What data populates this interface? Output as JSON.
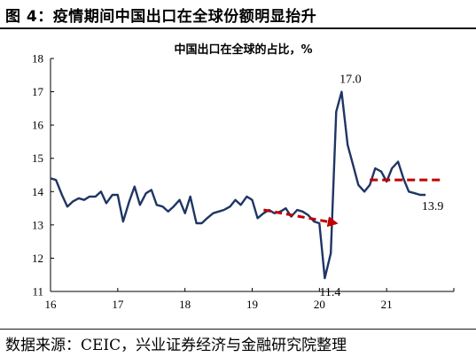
{
  "figure_title": "图 4：疫情期间中国出口在全球份额明显抬升",
  "source": "数据来源：CEIC，兴业证券经济与金融研究院整理",
  "colors": {
    "line": "#1f3564",
    "arrow": "#c00000"
  },
  "chart_data": {
    "type": "line",
    "title": "中国出口在全球的占比，%",
    "xlabel": "",
    "ylabel": "",
    "ylim": [
      11,
      18
    ],
    "yticks": [
      "11",
      "12",
      "13",
      "14",
      "15",
      "16",
      "17",
      "18"
    ],
    "xticks": [
      {
        "label": "16",
        "x": 2016.0
      },
      {
        "label": "17",
        "x": 2017.0
      },
      {
        "label": "18",
        "x": 2018.0
      },
      {
        "label": "19",
        "x": 2019.0
      },
      {
        "label": "20",
        "x": 2020.0
      },
      {
        "label": "21",
        "x": 2021.0
      }
    ],
    "xlim": [
      2016.0,
      2022.0
    ],
    "series": [
      {
        "points": [
          [
            2016.0,
            14.4
          ],
          [
            2016.08,
            14.35
          ],
          [
            2016.17,
            13.9
          ],
          [
            2016.25,
            13.55
          ],
          [
            2016.33,
            13.7
          ],
          [
            2016.42,
            13.8
          ],
          [
            2016.5,
            13.75
          ],
          [
            2016.58,
            13.85
          ],
          [
            2016.67,
            13.85
          ],
          [
            2016.75,
            14.0
          ],
          [
            2016.83,
            13.65
          ],
          [
            2016.92,
            13.9
          ],
          [
            2017.0,
            13.9
          ],
          [
            2017.08,
            13.1
          ],
          [
            2017.17,
            13.7
          ],
          [
            2017.25,
            14.15
          ],
          [
            2017.33,
            13.6
          ],
          [
            2017.42,
            13.95
          ],
          [
            2017.5,
            14.05
          ],
          [
            2017.58,
            13.6
          ],
          [
            2017.67,
            13.55
          ],
          [
            2017.75,
            13.4
          ],
          [
            2017.83,
            13.55
          ],
          [
            2017.92,
            13.75
          ],
          [
            2018.0,
            13.35
          ],
          [
            2018.08,
            13.85
          ],
          [
            2018.17,
            13.05
          ],
          [
            2018.25,
            13.05
          ],
          [
            2018.33,
            13.2
          ],
          [
            2018.42,
            13.35
          ],
          [
            2018.5,
            13.4
          ],
          [
            2018.58,
            13.45
          ],
          [
            2018.67,
            13.55
          ],
          [
            2018.75,
            13.75
          ],
          [
            2018.83,
            13.6
          ],
          [
            2018.92,
            13.85
          ],
          [
            2019.0,
            13.75
          ],
          [
            2019.08,
            13.2
          ],
          [
            2019.17,
            13.35
          ],
          [
            2019.25,
            13.45
          ],
          [
            2019.33,
            13.35
          ],
          [
            2019.42,
            13.4
          ],
          [
            2019.5,
            13.5
          ],
          [
            2019.58,
            13.25
          ],
          [
            2019.67,
            13.45
          ],
          [
            2019.75,
            13.4
          ],
          [
            2019.83,
            13.3
          ],
          [
            2019.92,
            13.1
          ],
          [
            2020.0,
            13.05
          ],
          [
            2020.08,
            11.4
          ],
          [
            2020.17,
            12.15
          ],
          [
            2020.25,
            16.4
          ],
          [
            2020.33,
            17.0
          ],
          [
            2020.42,
            15.4
          ],
          [
            2020.5,
            14.8
          ],
          [
            2020.58,
            14.2
          ],
          [
            2020.67,
            14.0
          ],
          [
            2020.75,
            14.2
          ],
          [
            2020.83,
            14.7
          ],
          [
            2020.92,
            14.6
          ],
          [
            2021.0,
            14.3
          ],
          [
            2021.08,
            14.7
          ],
          [
            2021.17,
            14.9
          ],
          [
            2021.25,
            14.4
          ],
          [
            2021.33,
            14.0
          ],
          [
            2021.42,
            13.95
          ],
          [
            2021.5,
            13.9
          ],
          [
            2021.58,
            13.9
          ]
        ]
      }
    ],
    "annotations": [
      {
        "text": "17.0",
        "x": 2020.33,
        "y": 17.0
      },
      {
        "text": "11.4",
        "x": 2020.08,
        "y": 11.4
      },
      {
        "text": "13.9",
        "x": 2021.58,
        "y": 13.9
      }
    ],
    "trend_arrow": {
      "from": [
        2019.17,
        13.45
      ],
      "to": [
        2020.25,
        13.05
      ]
    },
    "dashed_level": {
      "y": 14.35,
      "x_start": 2020.75,
      "x_end": 2021.83
    }
  }
}
